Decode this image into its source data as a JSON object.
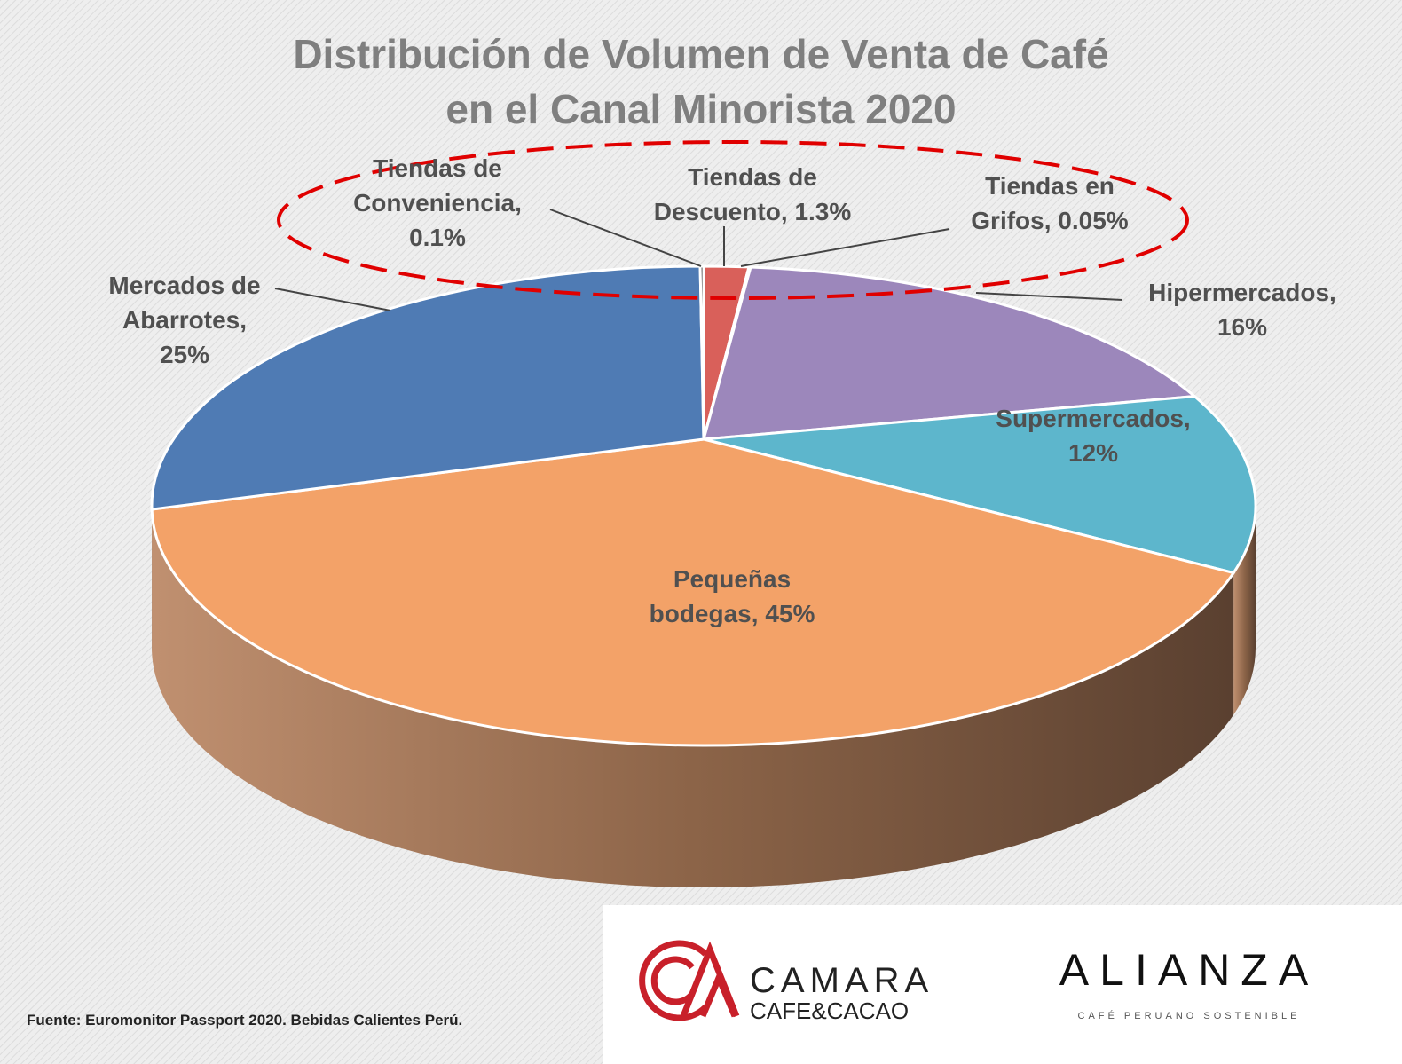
{
  "chart_data": {
    "type": "pie",
    "title": "Distribución de Volumen de Venta de Café en el Canal Minorista 2020",
    "categories": [
      "Tiendas de Descuento,",
      "Tiendas en Grifos,",
      "Hipermercados,",
      "Supermercados,",
      "Pequeñas bodegas,",
      "Mercados de Abarrotes,",
      "Tiendas de Conveniencia,"
    ],
    "values": [
      1.3,
      0.05,
      16,
      12,
      45,
      25,
      0.1
    ],
    "value_labels": [
      "1.3%",
      "0.05%",
      "16%",
      "12%",
      "45%",
      "25%",
      "0.1%"
    ],
    "colors": [
      "#d9605a",
      "#e8e8e8",
      "#9c87bb",
      "#5db6cc",
      "#f3a268",
      "#4f7bb4",
      "#3b3b3b"
    ],
    "source": "Fuente: Euromonitor Passport 2020. Bebidas Calientes Perú."
  },
  "logos": {
    "camara": "CAMARA",
    "camara_sub": "CAFE&CACAO",
    "alianza": "ALIANZA",
    "alianza_sub": "CAFÉ PERUANO SOSTENIBLE"
  }
}
